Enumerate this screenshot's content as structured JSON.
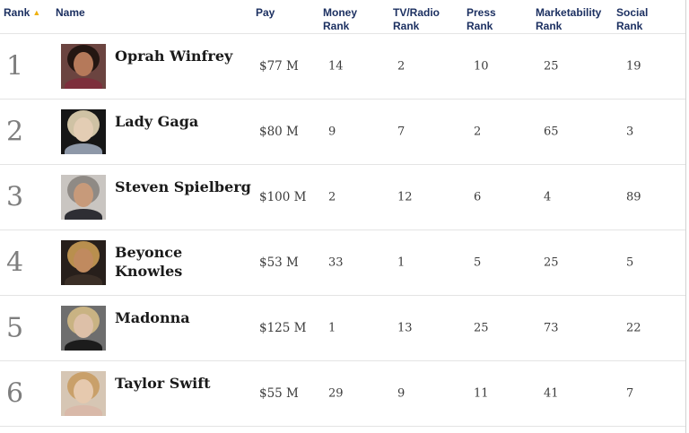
{
  "table": {
    "columns": {
      "rank": "Rank",
      "name": "Name",
      "pay": "Pay",
      "money": "Money Rank",
      "tv_radio": "TV/Radio Rank",
      "press": "Press Rank",
      "marketability": "Marketability Rank",
      "social": "Social Rank"
    },
    "sort": {
      "column": "rank",
      "direction": "ascending",
      "icon": "triangle-up"
    },
    "rows": [
      {
        "rank": "1",
        "name": "Oprah Winfrey",
        "pay": "$77 M",
        "money": "14",
        "tv_radio": "2",
        "press": "10",
        "marketability": "25",
        "social": "19",
        "photo": {
          "bg": "#6b4440",
          "hair": "#241612",
          "skin": "#b5795a",
          "torso": "#7d2f3c"
        }
      },
      {
        "rank": "2",
        "name": "Lady Gaga",
        "pay": "$80 M",
        "money": "9",
        "tv_radio": "7",
        "press": "2",
        "marketability": "65",
        "social": "3",
        "photo": {
          "bg": "#161616",
          "hair": "#cfc2a4",
          "skin": "#e3cdb4",
          "torso": "#8e98a8"
        }
      },
      {
        "rank": "3",
        "name": "Steven Spielberg",
        "pay": "$100 M",
        "money": "2",
        "tv_radio": "12",
        "press": "6",
        "marketability": "4",
        "social": "89",
        "photo": {
          "bg": "#c9c5c1",
          "hair": "#8f8a85",
          "skin": "#c79a7a",
          "torso": "#2e2e34"
        }
      },
      {
        "rank": "4",
        "name": "Beyonce\nKnowles",
        "pay": "$53 M",
        "money": "33",
        "tv_radio": "1",
        "press": "5",
        "marketability": "25",
        "social": "5",
        "photo": {
          "bg": "#271f1b",
          "hair": "#b98f4e",
          "skin": "#c08a5f",
          "torso": "#3a2e26"
        }
      },
      {
        "rank": "5",
        "name": "Madonna",
        "pay": "$125 M",
        "money": "1",
        "tv_radio": "13",
        "press": "25",
        "marketability": "73",
        "social": "22",
        "photo": {
          "bg": "#6e6e6e",
          "hair": "#c9b383",
          "skin": "#ddc0a8",
          "torso": "#1c1c1c"
        }
      },
      {
        "rank": "6",
        "name": "Taylor Swift",
        "pay": "$55 M",
        "money": "29",
        "tv_radio": "9",
        "press": "11",
        "marketability": "41",
        "social": "7",
        "photo": {
          "bg": "#d6c6b4",
          "hair": "#c9a06a",
          "skin": "#e6c9ae",
          "torso": "#d9b9a9"
        }
      }
    ]
  },
  "colors": {
    "header_text": "#1c3061",
    "sort_arrow": "#eeb111",
    "rank_number": "#7e7e7e",
    "name_text": "#1a1a1a",
    "value_text": "#3b3b3b",
    "divider": "#e4e4e4",
    "border_right": "#d2d2d2",
    "background": "#ffffff"
  }
}
